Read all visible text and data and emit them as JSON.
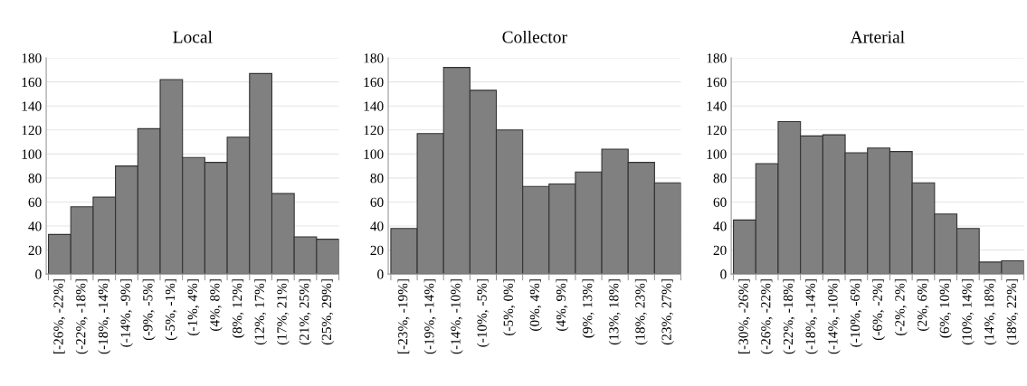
{
  "chart_data": [
    {
      "type": "bar",
      "title": "Local",
      "categories": [
        "[-26%, -22%]",
        "(-22%, -18%]",
        "(-18%, -14%]",
        "(-14%, -9%]",
        "(-9%, -5%]",
        "(-5%, -1%]",
        "(-1%, 4%]",
        "(4%, 8%]",
        "(8%, 12%]",
        "(12%, 17%]",
        "(17%, 21%]",
        "(21%, 25%]",
        "(25%, 29%]"
      ],
      "values": [
        33,
        56,
        64,
        90,
        121,
        162,
        97,
        93,
        114,
        167,
        67,
        31,
        29
      ],
      "color": "#808080",
      "ylim": [
        0,
        180
      ],
      "yticks": [
        0,
        20,
        40,
        60,
        80,
        100,
        120,
        140,
        160,
        180
      ],
      "grid": "y"
    },
    {
      "type": "bar",
      "title": "Collector",
      "categories": [
        "[-23%, -19%]",
        "(-19%, -14%]",
        "(-14%, -10%]",
        "(-10%, -5%]",
        "(-5%, 0%]",
        "(0%, 4%]",
        "(4%, 9%]",
        "(9%, 13%]",
        "(13%, 18%]",
        "(18%, 23%]",
        "(23%, 27%]"
      ],
      "values": [
        38,
        117,
        172,
        153,
        120,
        73,
        75,
        85,
        104,
        93,
        76
      ],
      "color": "#808080",
      "ylim": [
        0,
        180
      ],
      "yticks": [
        0,
        20,
        40,
        60,
        80,
        100,
        120,
        140,
        160,
        180
      ],
      "grid": "y"
    },
    {
      "type": "bar",
      "title": "Arterial",
      "categories": [
        "[-30%, -26%]",
        "(-26%, -22%]",
        "(-22%, -18%]",
        "(-18%, -14%]",
        "(-14%, -10%]",
        "(-10%, -6%]",
        "(-6%, -2%]",
        "(-2%, 2%]",
        "(2%, 6%]",
        "(6%, 10%]",
        "(10%, 14%]",
        "(14%, 18%]",
        "(18%, 22%]"
      ],
      "values": [
        45,
        92,
        127,
        115,
        116,
        101,
        105,
        102,
        76,
        50,
        38,
        10,
        11
      ],
      "color": "#808080",
      "ylim": [
        0,
        180
      ],
      "yticks": [
        0,
        20,
        40,
        60,
        80,
        100,
        120,
        140,
        160,
        180
      ],
      "grid": "y"
    }
  ]
}
